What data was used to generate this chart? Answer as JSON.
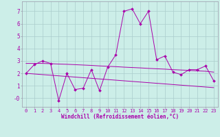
{
  "xlabel": "Windchill (Refroidissement éolien,°C)",
  "background_color": "#cceee8",
  "grid_color": "#aacccc",
  "line_color": "#aa00aa",
  "spine_color": "#9999aa",
  "x_hours": [
    0,
    1,
    2,
    3,
    4,
    5,
    6,
    7,
    8,
    9,
    10,
    11,
    12,
    13,
    14,
    15,
    16,
    17,
    18,
    19,
    20,
    21,
    22,
    23
  ],
  "y_main": [
    2.0,
    2.7,
    3.0,
    2.8,
    -0.2,
    2.0,
    0.7,
    0.8,
    2.3,
    0.6,
    2.5,
    3.5,
    7.0,
    7.2,
    6.0,
    7.0,
    3.1,
    3.4,
    2.1,
    1.9,
    2.3,
    2.3,
    2.6,
    1.4
  ],
  "y_trend1": [
    2.8,
    2.8,
    2.8,
    2.78,
    2.75,
    2.73,
    2.7,
    2.67,
    2.64,
    2.6,
    2.57,
    2.54,
    2.5,
    2.47,
    2.44,
    2.4,
    2.37,
    2.34,
    2.3,
    2.27,
    2.24,
    2.2,
    2.17,
    2.1
  ],
  "y_trend2": [
    2.0,
    1.95,
    1.9,
    1.85,
    1.8,
    1.75,
    1.7,
    1.65,
    1.6,
    1.55,
    1.5,
    1.45,
    1.4,
    1.35,
    1.3,
    1.25,
    1.2,
    1.15,
    1.1,
    1.05,
    1.0,
    0.95,
    0.9,
    0.85
  ],
  "ylim": [
    -0.7,
    7.8
  ],
  "xlim": [
    -0.5,
    23.5
  ],
  "yticks": [
    0,
    1,
    2,
    3,
    4,
    5,
    6,
    7
  ],
  "ytick_labels": [
    "-0",
    "1",
    "2",
    "3",
    "4",
    "5",
    "6",
    "7"
  ],
  "xticks": [
    0,
    1,
    2,
    3,
    4,
    5,
    6,
    7,
    8,
    9,
    10,
    11,
    12,
    13,
    14,
    15,
    16,
    17,
    18,
    19,
    20,
    21,
    22,
    23
  ],
  "tick_fontsize": 5.0,
  "xlabel_fontsize": 5.5,
  "marker_size": 2.0
}
